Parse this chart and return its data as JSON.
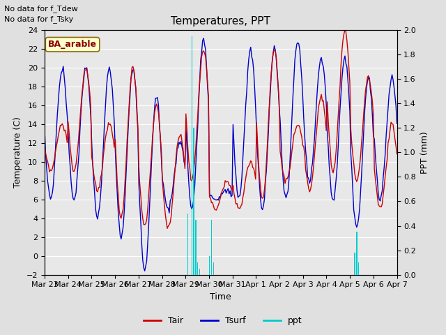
{
  "title": "Temperatures, PPT",
  "xlabel": "Time",
  "ylabel_left": "Temperature (C)",
  "ylabel_right": "PPT (mm)",
  "annotation1": "No data for f_Tdew",
  "annotation2": "No data for f_Tsky",
  "legend_label": "BA_arable",
  "ylim_left": [
    -2,
    24
  ],
  "ylim_right": [
    0.0,
    2.0
  ],
  "yticks_left": [
    -2,
    0,
    2,
    4,
    6,
    8,
    10,
    12,
    14,
    16,
    18,
    20,
    22,
    24
  ],
  "yticks_right": [
    0.0,
    0.2,
    0.4,
    0.6,
    0.8,
    1.0,
    1.2,
    1.4,
    1.6,
    1.8,
    2.0
  ],
  "xtick_labels": [
    "Mar 23",
    "Mar 24",
    "Mar 25",
    "Mar 26",
    "Mar 27",
    "Mar 28",
    "Mar 29",
    "Mar 30",
    "Mar 31",
    "Apr 1",
    "Apr 2",
    "Apr 3",
    "Apr 4",
    "Apr 5",
    "Apr 6",
    "Apr 7"
  ],
  "tair_color": "#cc0000",
  "tsurf_color": "#0000cc",
  "ppt_color": "#00cccc",
  "bg_color": "#e0e0e0",
  "plot_bg": "#e8e8e8",
  "grid_color": "white",
  "n_days": 15,
  "tair_peaks": [
    14,
    20,
    14,
    20,
    16,
    13,
    22,
    8,
    10,
    22,
    14,
    17,
    24,
    19,
    14
  ],
  "tair_troughs": [
    9,
    9,
    7,
    4,
    3,
    3,
    8,
    5,
    5,
    6,
    8,
    7,
    9,
    8,
    5
  ],
  "tsurf_peaks": [
    20,
    20,
    20,
    20,
    17,
    12,
    23,
    7,
    22,
    22,
    23,
    21,
    21,
    19,
    19
  ],
  "tsurf_troughs": [
    6,
    6,
    4,
    2,
    -1.5,
    5,
    5,
    6,
    6,
    5,
    6,
    8,
    6,
    3,
    6
  ],
  "ppt_spikes": {
    "days": [
      6,
      6,
      6,
      6,
      6,
      6,
      7,
      7,
      7,
      13,
      13,
      13
    ],
    "hours": [
      2,
      6,
      8,
      10,
      12,
      14,
      0,
      2,
      4,
      4,
      6,
      8
    ],
    "values": [
      0.5,
      1.95,
      1.2,
      0.45,
      0.1,
      0.05,
      0.15,
      0.45,
      0.1,
      0.18,
      0.35,
      0.1
    ]
  }
}
